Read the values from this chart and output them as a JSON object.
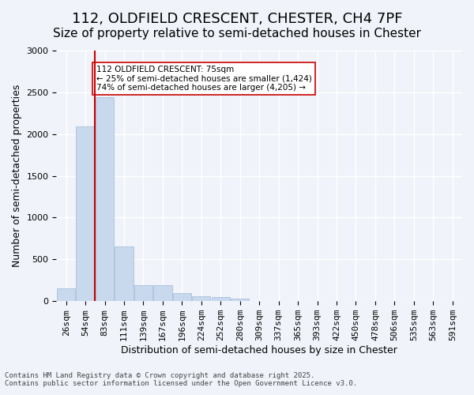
{
  "title_line1": "112, OLDFIELD CRESCENT, CHESTER, CH4 7PF",
  "title_line2": "Size of property relative to semi-detached houses in Chester",
  "xlabel": "Distribution of semi-detached houses by size in Chester",
  "ylabel": "Number of semi-detached properties",
  "categories": [
    "26sqm",
    "54sqm",
    "83sqm",
    "111sqm",
    "139sqm",
    "167sqm",
    "196sqm",
    "224sqm",
    "252sqm",
    "280sqm",
    "309sqm",
    "337sqm",
    "365sqm",
    "393sqm",
    "422sqm",
    "450sqm",
    "478sqm",
    "506sqm",
    "535sqm",
    "563sqm",
    "591sqm"
  ],
  "values": [
    155,
    2090,
    2440,
    650,
    195,
    195,
    100,
    55,
    50,
    30,
    0,
    0,
    0,
    0,
    0,
    0,
    0,
    0,
    0,
    0,
    0
  ],
  "bar_color": "#c8d9ed",
  "bar_edge_color": "#a0b8d8",
  "vline_x": 1,
  "vline_color": "#cc0000",
  "annotation_title": "112 OLDFIELD CRESCENT: 75sqm",
  "annotation_line2": "← 25% of semi-detached houses are smaller (1,424)",
  "annotation_line3": "74% of semi-detached houses are larger (4,205) →",
  "annotation_box_color": "#ffffff",
  "annotation_box_edge": "#cc0000",
  "ylim": [
    0,
    3000
  ],
  "yticks": [
    0,
    500,
    1000,
    1500,
    2000,
    2500,
    3000
  ],
  "footer_line1": "Contains HM Land Registry data © Crown copyright and database right 2025.",
  "footer_line2": "Contains public sector information licensed under the Open Government Licence v3.0.",
  "bg_color": "#f0f4fa",
  "plot_bg_color": "#f0f4fa",
  "grid_color": "#ffffff",
  "title_fontsize": 13,
  "subtitle_fontsize": 11,
  "axis_label_fontsize": 9,
  "tick_fontsize": 8
}
